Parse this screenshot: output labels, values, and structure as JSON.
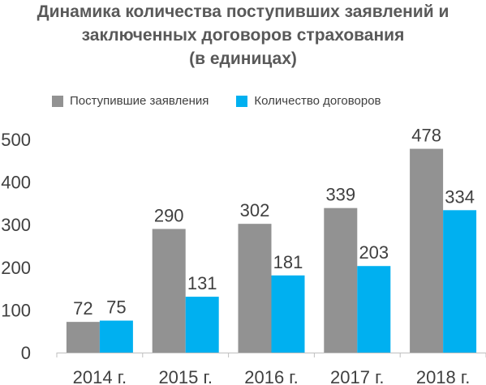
{
  "chart_data": {
    "type": "bar",
    "title": [
      "Динамика количества поступивших заявлений и",
      "заключенных договоров страхования",
      "(в единицах)"
    ],
    "categories": [
      "2014 г.",
      "2015 г.",
      "2016 г.",
      "2017 г.",
      "2018 г."
    ],
    "series": [
      {
        "name": "Поступившие заявления",
        "color": "#929292",
        "values": [
          72,
          290,
          302,
          339,
          478
        ]
      },
      {
        "name": "Количество договоров",
        "color": "#00b0f0",
        "values": [
          75,
          131,
          181,
          203,
          334
        ]
      }
    ],
    "ylim": [
      0,
      500
    ],
    "yticks": [
      0,
      100,
      200,
      300,
      400,
      500
    ],
    "grid": false,
    "legend_position": "top"
  }
}
